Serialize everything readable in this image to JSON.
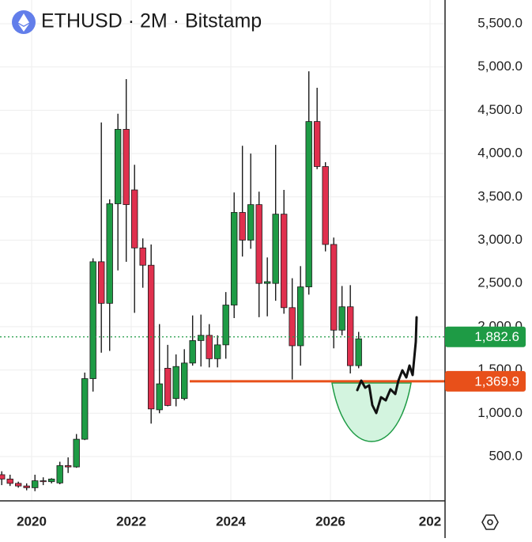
{
  "chart_data": {
    "type": "candlestick",
    "title": "ETHUSD · 2M · Bitstamp",
    "x": [
      2019.4,
      2019.567,
      2019.733,
      2019.9,
      2020.067,
      2020.233,
      2020.4,
      2020.567,
      2020.733,
      2020.9,
      2021.067,
      2021.233,
      2021.4,
      2021.567,
      2021.733,
      2021.9,
      2022.067,
      2022.233,
      2022.4,
      2022.567,
      2022.733,
      2022.9,
      2023.067,
      2023.233,
      2023.4,
      2023.567,
      2023.733,
      2023.9,
      2024.067,
      2024.233,
      2024.4,
      2024.567,
      2024.733,
      2024.9,
      2025.067,
      2025.233,
      2025.4,
      2025.567,
      2025.733,
      2025.9,
      2026.067,
      2026.233,
      2026.4,
      2026.567
    ],
    "open": [
      290,
      240,
      190,
      160,
      140,
      220,
      210,
      195,
      395,
      380,
      700,
      1400,
      2750,
      2270,
      3420,
      4280,
      3580,
      2910,
      2710,
      1040,
      1520,
      1170,
      1170,
      1580,
      1840,
      1900,
      1630,
      1790,
      2250,
      3320,
      3000,
      3410,
      2500,
      2500,
      3300,
      2220,
      1780,
      2460,
      4370,
      3850,
      2950,
      1960,
      2230,
      1550
    ],
    "high": [
      330,
      290,
      210,
      190,
      290,
      260,
      250,
      440,
      490,
      760,
      1470,
      2790,
      4360,
      3470,
      4460,
      4860,
      3870,
      3020,
      2950,
      2030,
      1790,
      1680,
      1740,
      2130,
      2140,
      2030,
      1900,
      2400,
      3550,
      4090,
      4000,
      3560,
      2800,
      4100,
      3580,
      2560,
      2700,
      4950,
      4760,
      3900,
      3030,
      2470,
      2480,
      1940
    ],
    "low": [
      170,
      160,
      140,
      110,
      100,
      170,
      190,
      180,
      310,
      370,
      690,
      1250,
      1700,
      1720,
      2650,
      2750,
      2160,
      2450,
      880,
      1000,
      1080,
      1080,
      1150,
      1550,
      1540,
      1530,
      1530,
      1630,
      2100,
      2810,
      2900,
      2110,
      2120,
      2300,
      2150,
      1390,
      1550,
      2370,
      3820,
      2870,
      1750,
      1900,
      1460,
      1520
    ],
    "close": [
      240,
      190,
      160,
      140,
      220,
      210,
      240,
      395,
      380,
      700,
      1400,
      2750,
      2270,
      3420,
      4280,
      3410,
      2910,
      2710,
      1050,
      1340,
      1090,
      1540,
      1580,
      1840,
      1900,
      1630,
      1790,
      2250,
      3320,
      3000,
      3410,
      2500,
      2520,
      3300,
      2220,
      1780,
      2460,
      4370,
      3850,
      2950,
      1960,
      2230,
      1550,
      1860
    ],
    "up_color": "#1e9b45",
    "down_color": "#e0304e",
    "ylim": [
      -12,
      5774
    ],
    "yticks": [
      {
        "value": 500,
        "label": "500.0"
      },
      {
        "value": 1000,
        "label": "1,000.0"
      },
      {
        "value": 1500,
        "label": "1,500.0"
      },
      {
        "value": 2000,
        "label": "2,000.0"
      },
      {
        "value": 2500,
        "label": "2,500.0"
      },
      {
        "value": 3000,
        "label": "3,000.0"
      },
      {
        "value": 3500,
        "label": "3,500.0"
      },
      {
        "value": 4000,
        "label": "4,000.0"
      },
      {
        "value": 4500,
        "label": "4,500.0"
      },
      {
        "value": 5000,
        "label": "5,000.0"
      },
      {
        "value": 5500,
        "label": "5,500.0"
      }
    ],
    "xlim": [
      2019.365,
      2028.302
    ],
    "xticks": [
      2020,
      2022,
      2024,
      2026,
      {
        "value": 2028,
        "label": "202"
      }
    ],
    "grid": true,
    "price_lines": [
      {
        "value": 1882.6,
        "label": "1,882.6",
        "color": "#1e9b45",
        "style": "dotted"
      },
      {
        "value": 1369.9,
        "label": "1,369.9",
        "color": "#e8501a",
        "style": "solid"
      }
    ]
  }
}
